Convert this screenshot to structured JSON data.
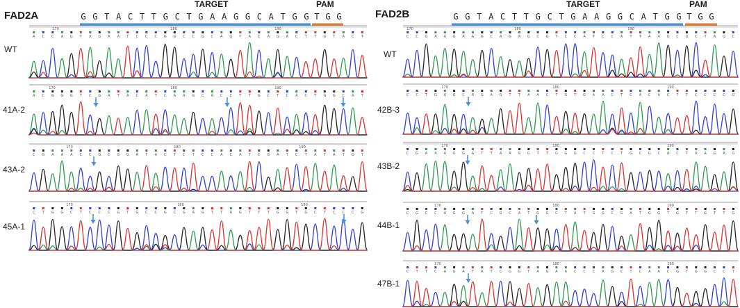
{
  "panels": [
    {
      "id": "fad2a",
      "title": "FAD2A",
      "target_label": "TARGET",
      "pam_label": "PAM",
      "target_sequence": "GGTACTTGCTGAAGGCATGG",
      "pam_sequence": "TGG",
      "tracks": [
        {
          "label": "WT",
          "arrows": 0
        },
        {
          "label": "41A-2",
          "arrows": 3
        },
        {
          "label": "43A-2",
          "arrows": 1
        },
        {
          "label": "45A-1",
          "arrows": 2
        }
      ]
    },
    {
      "id": "fad2b",
      "title": "FAD2B",
      "target_label": "TARGET",
      "pam_label": "PAM",
      "target_sequence": "GGTACTTGCTGAAGGCATGG",
      "pam_sequence": "TGG",
      "tracks": [
        {
          "label": "WT",
          "arrows": 0
        },
        {
          "label": "42B-3",
          "arrows": 1
        },
        {
          "label": "43B-2",
          "arrows": 1
        },
        {
          "label": "44B-1",
          "arrows": 2
        },
        {
          "label": "47B-1",
          "arrows": 1
        }
      ]
    }
  ],
  "tick_labels": [
    "170",
    "180",
    "190"
  ],
  "colors": {
    "A": "#2e9a4e",
    "C": "#2f3fd6",
    "G": "#222222",
    "T": "#e03030",
    "target_bar": "#3b8ed8",
    "pam_bar": "#e07a2a",
    "pam_text": "#e03030",
    "arrow": "#4a90d9"
  }
}
